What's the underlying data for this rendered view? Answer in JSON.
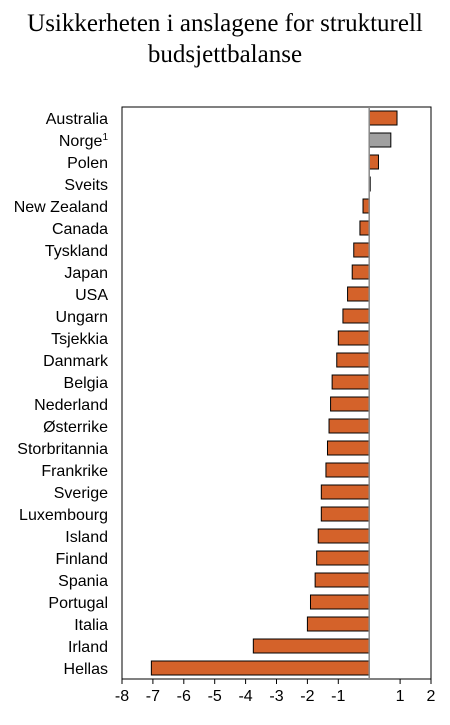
{
  "chart_data": {
    "type": "bar",
    "orientation": "horizontal",
    "title_lines": [
      "Usikkerheten i anslagene for strukturell",
      "budsjettbalanse"
    ],
    "categories": [
      "Australia",
      "Norge",
      "Polen",
      "Sveits",
      "New Zealand",
      "Canada",
      "Tyskland",
      "Japan",
      "USA",
      "Ungarn",
      "Tsjekkia",
      "Danmark",
      "Belgia",
      "Nederland",
      "Østerrike",
      "Storbritannia",
      "Frankrike",
      "Sverige",
      "Luxembourg",
      "Island",
      "Finland",
      "Spania",
      "Portugal",
      "Italia",
      "Irland",
      "Hellas"
    ],
    "category_superscripts": {
      "Norge": "1"
    },
    "values": [
      0.9,
      0.7,
      0.3,
      0.03,
      -0.2,
      -0.3,
      -0.5,
      -0.55,
      -0.7,
      -0.85,
      -1.0,
      -1.05,
      -1.2,
      -1.25,
      -1.3,
      -1.35,
      -1.4,
      -1.55,
      -1.55,
      -1.65,
      -1.7,
      -1.75,
      -1.9,
      -2.0,
      -3.75,
      -7.05
    ],
    "colors": [
      "#d4622a",
      "#a0a0a0",
      "#d4622a",
      "#d4622a",
      "#d4622a",
      "#d4622a",
      "#d4622a",
      "#d4622a",
      "#d4622a",
      "#d4622a",
      "#d4622a",
      "#d4622a",
      "#d4622a",
      "#d4622a",
      "#d4622a",
      "#d4622a",
      "#d4622a",
      "#d4622a",
      "#d4622a",
      "#d4622a",
      "#d4622a",
      "#d4622a",
      "#d4622a",
      "#d4622a",
      "#d4622a",
      "#d4622a"
    ],
    "xlim": [
      -8,
      2
    ],
    "xticks": [
      "-8",
      "-7",
      "-6",
      "-5",
      "-4",
      "-3",
      "-2",
      "-1",
      "1",
      "2"
    ],
    "xtick_values": [
      -8,
      -7,
      -6,
      -5,
      -4,
      -3,
      -2,
      -1,
      1,
      2
    ],
    "grid": false,
    "xlabel": "",
    "ylabel": ""
  }
}
